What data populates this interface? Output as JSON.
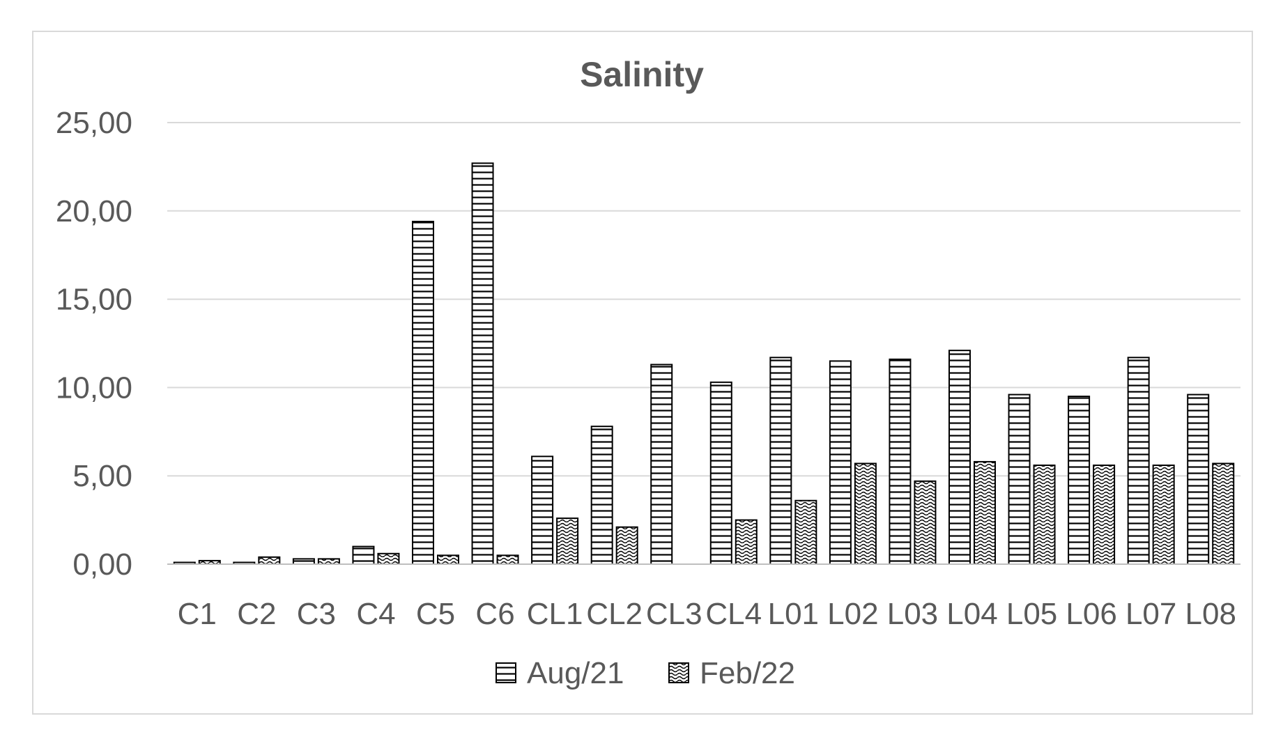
{
  "chart_data": {
    "type": "bar",
    "title": "Salinity",
    "xlabel": "",
    "ylabel": "",
    "ylim": [
      0,
      25
    ],
    "yticks": [
      "0,00",
      "5,00",
      "10,00",
      "15,00",
      "20,00",
      "25,00"
    ],
    "grid": true,
    "legend_position": "bottom",
    "categories": [
      "C1",
      "C2",
      "C3",
      "C4",
      "C5",
      "C6",
      "CL1",
      "CL2",
      "CL3",
      "CL4",
      "L01",
      "L02",
      "L03",
      "L04",
      "L05",
      "L06",
      "L07",
      "L08"
    ],
    "series": [
      {
        "name": "Aug/21",
        "pattern": "horizontal-lines",
        "values": [
          0.1,
          0.1,
          0.3,
          1.0,
          19.4,
          22.7,
          6.1,
          7.8,
          11.3,
          10.3,
          11.7,
          11.5,
          11.6,
          12.1,
          9.6,
          9.5,
          11.7,
          9.6
        ]
      },
      {
        "name": "Feb/22",
        "pattern": "wave-dots",
        "values": [
          0.2,
          0.4,
          0.3,
          0.6,
          0.5,
          0.5,
          2.6,
          2.1,
          0.0,
          2.5,
          3.6,
          5.7,
          4.7,
          5.8,
          5.6,
          5.6,
          5.6,
          5.7
        ]
      }
    ],
    "colors": {
      "bar_stroke": "#000000",
      "grid": "#d9d9d9",
      "text": "#595959",
      "frame": "#d9d9d9"
    }
  }
}
